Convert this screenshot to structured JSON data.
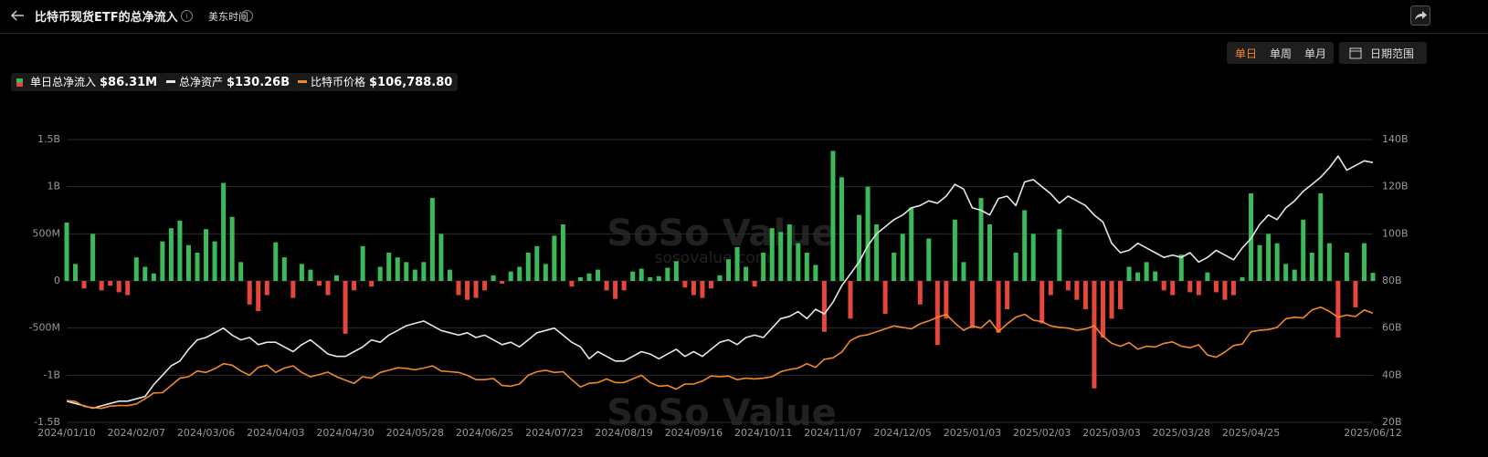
{
  "header": {
    "title": "比特币现货ETF的总净流入",
    "timezone": "美东时间"
  },
  "controls": {
    "periods": [
      "单日",
      "单周",
      "单月"
    ],
    "date_range": "日期范围"
  },
  "watermark": {
    "brand": "SoSo Value",
    "site": "sosovalue.com"
  },
  "chart_data": {
    "type": "combo",
    "categories": [
      "2024/01/10",
      null,
      null,
      null,
      null,
      null,
      null,
      null,
      "2024/02/07",
      null,
      null,
      null,
      null,
      null,
      null,
      null,
      "2024/03/06",
      null,
      null,
      null,
      null,
      null,
      null,
      null,
      "2024/04/03",
      null,
      null,
      null,
      null,
      null,
      null,
      null,
      "2024/04/30",
      null,
      null,
      null,
      null,
      null,
      null,
      null,
      "2024/05/28",
      null,
      null,
      null,
      null,
      null,
      null,
      null,
      "2024/06/25",
      null,
      null,
      null,
      null,
      null,
      null,
      null,
      "2024/07/23",
      null,
      null,
      null,
      null,
      null,
      null,
      null,
      "2024/08/19",
      null,
      null,
      null,
      null,
      null,
      null,
      null,
      "2024/09/16",
      null,
      null,
      null,
      null,
      null,
      null,
      null,
      "2024/10/11",
      null,
      null,
      null,
      null,
      null,
      null,
      null,
      "2024/11/07",
      null,
      null,
      null,
      null,
      null,
      null,
      null,
      "2024/12/05",
      null,
      null,
      null,
      null,
      null,
      null,
      null,
      "2025/01/03",
      null,
      null,
      null,
      null,
      null,
      null,
      null,
      "2025/02/03",
      null,
      null,
      null,
      null,
      null,
      null,
      null,
      "2025/03/03",
      null,
      null,
      null,
      null,
      null,
      null,
      null,
      "2025/03/28",
      null,
      null,
      null,
      null,
      null,
      null,
      null,
      "2025/04/25",
      null,
      null,
      null,
      null,
      null,
      null,
      null,
      null,
      null,
      null,
      null,
      null,
      null,
      "2025/06/12"
    ],
    "ylim": [
      -1500,
      1500
    ],
    "yticks": [
      {
        "value": 1500,
        "label": "1.5B"
      },
      {
        "value": 1000,
        "label": "1B"
      },
      {
        "value": 500,
        "label": "500M"
      },
      0,
      {
        "value": -500,
        "label": "-500M"
      },
      {
        "value": -1000,
        "label": "-1B"
      },
      {
        "value": -1500,
        "label": "-1.5B"
      }
    ],
    "y2lim": [
      20,
      140
    ],
    "y2ticks": [
      {
        "value": 20,
        "label": "20B"
      },
      {
        "value": 40,
        "label": "40B"
      },
      {
        "value": 60,
        "label": "60B"
      },
      {
        "value": 80,
        "label": "80B"
      },
      {
        "value": 100,
        "label": "100B"
      },
      {
        "value": 120,
        "label": "120B"
      },
      {
        "value": 140,
        "label": "140B"
      }
    ],
    "y3lim": [
      31590,
      226450
    ],
    "grid": true,
    "series": [
      {
        "name": "单日总净流入",
        "type": "bar",
        "color": "#3cb95a",
        "negative_color": "#e5473d",
        "value_label": "$86.31M",
        "values": [
          620,
          180,
          -80,
          500,
          -100,
          -50,
          -120,
          -150,
          250,
          150,
          80,
          420,
          560,
          640,
          380,
          300,
          550,
          420,
          1040,
          680,
          200,
          -250,
          -320,
          -150,
          410,
          250,
          -180,
          180,
          120,
          -50,
          -150,
          60,
          -560,
          -100,
          370,
          -60,
          150,
          300,
          250,
          200,
          120,
          200,
          880,
          500,
          120,
          -150,
          -200,
          -180,
          -100,
          60,
          -30,
          100,
          150,
          300,
          370,
          180,
          480,
          600,
          -60,
          40,
          80,
          120,
          -100,
          -190,
          -100,
          100,
          130,
          40,
          50,
          140,
          210,
          -70,
          -150,
          -180,
          -80,
          60,
          230,
          360,
          150,
          -60,
          300,
          560,
          520,
          600,
          400,
          300,
          170,
          -540,
          1380,
          1100,
          -400,
          700,
          1000,
          600,
          -350,
          300,
          500,
          780,
          -250,
          450,
          -680,
          -400,
          650,
          200,
          -500,
          880,
          600,
          -550,
          -300,
          300,
          750,
          500,
          -450,
          -150,
          550,
          -100,
          -200,
          -300,
          -1140,
          -600,
          -400,
          -300,
          150,
          90,
          200,
          100,
          -100,
          -150,
          280,
          -120,
          -150,
          90,
          -120,
          -200,
          -150,
          40,
          930,
          380,
          500,
          400,
          180,
          120,
          650,
          300,
          930,
          400,
          -600,
          300,
          -280,
          400,
          86.31
        ]
      },
      {
        "name": "总净资产",
        "type": "line",
        "axis": "y2",
        "color": "#e6e6e6",
        "value_label": "$130.26B",
        "values": [
          29,
          28,
          27,
          26,
          27,
          28,
          29,
          29,
          30,
          31,
          36,
          40,
          44,
          46,
          51,
          55,
          56,
          58,
          60,
          57,
          55,
          56,
          53,
          54,
          54,
          52,
          50,
          53,
          55,
          52,
          49,
          48,
          48,
          50,
          52,
          55,
          54,
          57,
          59,
          61,
          62,
          63,
          61,
          59,
          58,
          57,
          58,
          56,
          57,
          55,
          53,
          54,
          52,
          55,
          58,
          59,
          60,
          57,
          54,
          52,
          47,
          50,
          48,
          46,
          46,
          48,
          50,
          49,
          47,
          49,
          51,
          48,
          50,
          48,
          51,
          54,
          55,
          53,
          56,
          57,
          56,
          60,
          64,
          65,
          67,
          64,
          68,
          66,
          71,
          78,
          83,
          88,
          95,
          100,
          103,
          106,
          108,
          111,
          112,
          114,
          113,
          116,
          121,
          119,
          111,
          110,
          108,
          115,
          116,
          112,
          122,
          123,
          120,
          117,
          113,
          116,
          114,
          112,
          108,
          105,
          96,
          92,
          93,
          96,
          94,
          92,
          90,
          91,
          90,
          92,
          88,
          90,
          93,
          91,
          89,
          94,
          98,
          104,
          108,
          106,
          111,
          114,
          118,
          121,
          124,
          128,
          133,
          127,
          129,
          131,
          130.26
        ]
      },
      {
        "name": "比特币价格",
        "type": "line",
        "axis": "y3",
        "color": "#f0892b",
        "value_label": "$106,788.80",
        "values": [
          46600,
          46000,
          42500,
          41800,
          41200,
          42800,
          43200,
          43100,
          44300,
          47800,
          51800,
          52000,
          57000,
          62000,
          63000,
          67000,
          66000,
          68500,
          72000,
          71000,
          67000,
          64000,
          69500,
          71000,
          66000,
          69000,
          70500,
          66000,
          63000,
          64500,
          66200,
          63000,
          60600,
          58500,
          63000,
          62000,
          66000,
          67500,
          69200,
          68800,
          67800,
          69000,
          70500,
          67000,
          66500,
          66000,
          64000,
          61000,
          61000,
          61800,
          57000,
          56500,
          58000,
          64000,
          66500,
          67500,
          66000,
          66500,
          61000,
          56000,
          58500,
          59000,
          61500,
          59000,
          59000,
          61500,
          64000,
          59000,
          56500,
          57000,
          54500,
          58000,
          58000,
          60000,
          63500,
          63000,
          63500,
          61000,
          62000,
          61500,
          62000,
          63000,
          66500,
          68000,
          69000,
          72000,
          69500,
          75000,
          76000,
          80000,
          88000,
          91000,
          92000,
          94000,
          96000,
          98000,
          97000,
          96000,
          99500,
          101500,
          104000,
          106000,
          100000,
          95000,
          98000,
          96500,
          102000,
          94000,
          99500,
          104000,
          106000,
          102000,
          101000,
          98000,
          97000,
          96500,
          95000,
          96000,
          98000,
          91000,
          86000,
          84000,
          86500,
          82000,
          84000,
          83500,
          86000,
          87000,
          84000,
          83000,
          85000,
          78000,
          76500,
          80000,
          84500,
          85500,
          94000,
          95000,
          95500,
          97000,
          103000,
          104000,
          103500,
          109000,
          111000,
          108000,
          104000,
          105500,
          104500,
          109000,
          106788.8
        ]
      }
    ]
  }
}
